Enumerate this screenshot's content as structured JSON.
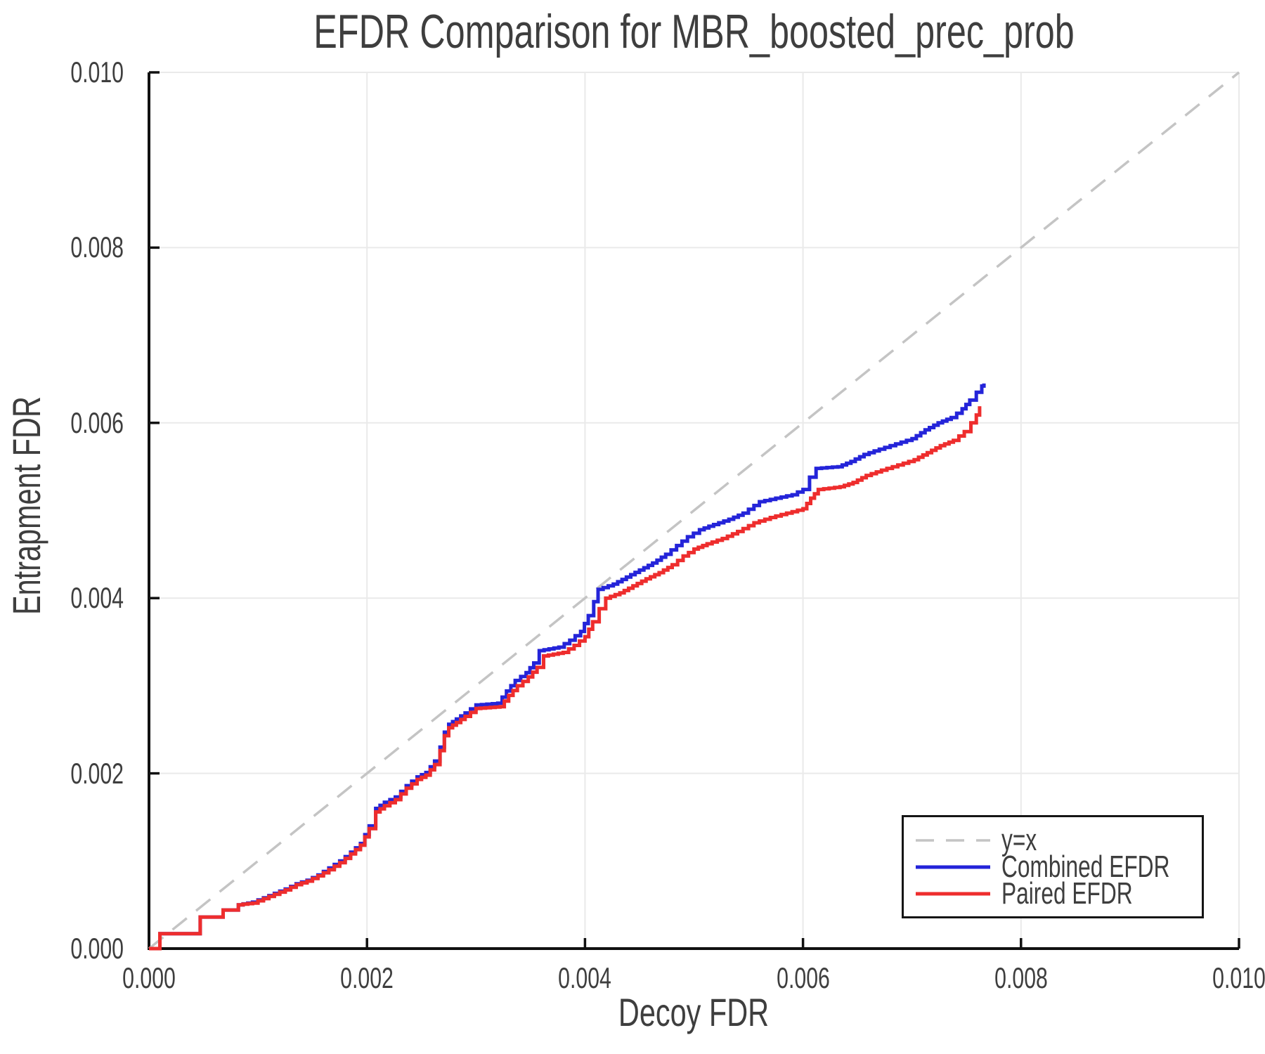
{
  "chart": {
    "title": "EFDR Comparison for MBR_boosted_prec_prob",
    "xlabel": "Decoy FDR",
    "ylabel": "Entrapment FDR"
  },
  "legend": {
    "entries": [
      {
        "label": "y=x",
        "color": "#c4c4c4",
        "dash": true
      },
      {
        "label": "Combined EFDR",
        "color": "#2424d9",
        "dash": false
      },
      {
        "label": "Paired EFDR",
        "color": "#ee2d2d",
        "dash": false
      }
    ]
  },
  "colors": {
    "grid": "#eaeaea",
    "axis": "#111111",
    "identity_line": "#c4c4c4",
    "combined": "#2424d9",
    "paired": "#ee2d2d",
    "text": "#3e3e3e"
  },
  "chart_data": {
    "type": "line",
    "title": "EFDR Comparison for MBR_boosted_prec_prob",
    "xlabel": "Decoy FDR",
    "ylabel": "Entrapment FDR",
    "xlim": [
      0.0,
      0.01
    ],
    "ylim": [
      0.0,
      0.01
    ],
    "grid": true,
    "legend_position": "lower right",
    "x_ticks": {
      "values": [
        0,
        0.002,
        0.004,
        0.006,
        0.008,
        0.01
      ],
      "labels": [
        "0.000",
        "0.002",
        "0.004",
        "0.006",
        "0.008",
        "0.010"
      ]
    },
    "y_ticks": {
      "values": [
        0,
        0.002,
        0.004,
        0.006,
        0.008,
        0.01
      ],
      "labels": [
        "0.000",
        "0.002",
        "0.004",
        "0.006",
        "0.008",
        "0.010"
      ]
    },
    "series": [
      {
        "name": "y=x",
        "style": "dashed",
        "color": "#c4c4c4",
        "points": [
          [
            0.0,
            0.0
          ],
          [
            0.01,
            0.01
          ]
        ]
      },
      {
        "name": "Combined EFDR",
        "style": "step",
        "color": "#2424d9",
        "points": [
          [
            0.0,
            0.0
          ],
          [
            0.0001,
            0.0
          ],
          [
            0.0001,
            0.00017
          ],
          [
            0.00047,
            0.00017
          ],
          [
            0.00047,
            0.00036
          ],
          [
            0.00068,
            0.00036
          ],
          [
            0.00068,
            0.00044
          ],
          [
            0.00082,
            0.00044
          ],
          [
            0.00082,
            0.0005
          ],
          [
            0.00095,
            0.00053
          ],
          [
            0.00105,
            0.00058
          ],
          [
            0.00115,
            0.00063
          ],
          [
            0.00125,
            0.00068
          ],
          [
            0.00135,
            0.00074
          ],
          [
            0.00145,
            0.00078
          ],
          [
            0.00155,
            0.00084
          ],
          [
            0.00165,
            0.00092
          ],
          [
            0.00175,
            0.001
          ],
          [
            0.00185,
            0.0011
          ],
          [
            0.00194,
            0.0012
          ],
          [
            0.00202,
            0.0014
          ],
          [
            0.00208,
            0.0016
          ],
          [
            0.00216,
            0.00167
          ],
          [
            0.00226,
            0.00173
          ],
          [
            0.00236,
            0.00186
          ],
          [
            0.00246,
            0.00196
          ],
          [
            0.00254,
            0.00201
          ],
          [
            0.00262,
            0.00214
          ],
          [
            0.00267,
            0.0023
          ],
          [
            0.00271,
            0.00247
          ],
          [
            0.00275,
            0.00256
          ],
          [
            0.00282,
            0.00262
          ],
          [
            0.0029,
            0.00269
          ],
          [
            0.003,
            0.00278
          ],
          [
            0.0032,
            0.0028
          ],
          [
            0.00328,
            0.00294
          ],
          [
            0.00336,
            0.00306
          ],
          [
            0.00346,
            0.00315
          ],
          [
            0.00353,
            0.00326
          ],
          [
            0.00358,
            0.0034
          ],
          [
            0.00376,
            0.00344
          ],
          [
            0.00386,
            0.00352
          ],
          [
            0.00396,
            0.00362
          ],
          [
            0.00403,
            0.0038
          ],
          [
            0.00408,
            0.00396
          ],
          [
            0.00412,
            0.0041
          ],
          [
            0.00426,
            0.00416
          ],
          [
            0.00438,
            0.00424
          ],
          [
            0.0045,
            0.00432
          ],
          [
            0.00462,
            0.0044
          ],
          [
            0.00474,
            0.0045
          ],
          [
            0.00484,
            0.0046
          ],
          [
            0.00494,
            0.0047
          ],
          [
            0.00505,
            0.00478
          ],
          [
            0.00518,
            0.00484
          ],
          [
            0.00532,
            0.0049
          ],
          [
            0.00545,
            0.00497
          ],
          [
            0.0056,
            0.0051
          ],
          [
            0.00575,
            0.00514
          ],
          [
            0.0059,
            0.00518
          ],
          [
            0.006,
            0.00524
          ],
          [
            0.00606,
            0.00538
          ],
          [
            0.00612,
            0.00548
          ],
          [
            0.00632,
            0.0055
          ],
          [
            0.00644,
            0.00556
          ],
          [
            0.00656,
            0.00564
          ],
          [
            0.0067,
            0.0057
          ],
          [
            0.00685,
            0.00576
          ],
          [
            0.007,
            0.00582
          ],
          [
            0.00712,
            0.00592
          ],
          [
            0.00724,
            0.006
          ],
          [
            0.00736,
            0.00606
          ],
          [
            0.00746,
            0.00616
          ],
          [
            0.00753,
            0.00626
          ],
          [
            0.00759,
            0.00635
          ],
          [
            0.00764,
            0.00642
          ],
          [
            0.00766,
            0.00645
          ]
        ]
      },
      {
        "name": "Paired EFDR",
        "style": "step",
        "color": "#ee2d2d",
        "points": [
          [
            0.0,
            0.0
          ],
          [
            0.0001,
            0.0
          ],
          [
            0.0001,
            0.00017
          ],
          [
            0.00047,
            0.00017
          ],
          [
            0.00047,
            0.00036
          ],
          [
            0.00068,
            0.00036
          ],
          [
            0.00068,
            0.00044
          ],
          [
            0.00082,
            0.00044
          ],
          [
            0.00082,
            0.0005
          ],
          [
            0.00095,
            0.00052
          ],
          [
            0.00105,
            0.00057
          ],
          [
            0.00115,
            0.00062
          ],
          [
            0.00125,
            0.00067
          ],
          [
            0.00135,
            0.00073
          ],
          [
            0.00145,
            0.00077
          ],
          [
            0.00155,
            0.00083
          ],
          [
            0.00165,
            0.0009
          ],
          [
            0.00175,
            0.00098
          ],
          [
            0.00185,
            0.00108
          ],
          [
            0.00194,
            0.00118
          ],
          [
            0.00202,
            0.00137
          ],
          [
            0.00208,
            0.00156
          ],
          [
            0.00216,
            0.00163
          ],
          [
            0.00226,
            0.0017
          ],
          [
            0.00236,
            0.00183
          ],
          [
            0.00246,
            0.00193
          ],
          [
            0.00254,
            0.00198
          ],
          [
            0.00262,
            0.0021
          ],
          [
            0.00267,
            0.00226
          ],
          [
            0.00271,
            0.00243
          ],
          [
            0.00275,
            0.00252
          ],
          [
            0.00282,
            0.00258
          ],
          [
            0.0029,
            0.00265
          ],
          [
            0.003,
            0.00274
          ],
          [
            0.00322,
            0.00276
          ],
          [
            0.0033,
            0.00289
          ],
          [
            0.00338,
            0.003
          ],
          [
            0.00348,
            0.0031
          ],
          [
            0.00356,
            0.00321
          ],
          [
            0.00362,
            0.00334
          ],
          [
            0.0038,
            0.00338
          ],
          [
            0.0039,
            0.00346
          ],
          [
            0.004,
            0.00356
          ],
          [
            0.00407,
            0.00373
          ],
          [
            0.00413,
            0.00388
          ],
          [
            0.00419,
            0.004
          ],
          [
            0.00432,
            0.00406
          ],
          [
            0.00444,
            0.00414
          ],
          [
            0.00456,
            0.00422
          ],
          [
            0.00468,
            0.00429
          ],
          [
            0.0048,
            0.00438
          ],
          [
            0.0049,
            0.00448
          ],
          [
            0.005,
            0.00456
          ],
          [
            0.00512,
            0.00462
          ],
          [
            0.00526,
            0.00468
          ],
          [
            0.0054,
            0.00476
          ],
          [
            0.00555,
            0.00486
          ],
          [
            0.0057,
            0.00492
          ],
          [
            0.00585,
            0.00497
          ],
          [
            0.006,
            0.00502
          ],
          [
            0.00607,
            0.00514
          ],
          [
            0.00614,
            0.00524
          ],
          [
            0.00634,
            0.00527
          ],
          [
            0.00646,
            0.00532
          ],
          [
            0.00658,
            0.0054
          ],
          [
            0.00672,
            0.00546
          ],
          [
            0.00687,
            0.00552
          ],
          [
            0.00702,
            0.00558
          ],
          [
            0.00714,
            0.00566
          ],
          [
            0.00726,
            0.00574
          ],
          [
            0.00738,
            0.0058
          ],
          [
            0.00748,
            0.0059
          ],
          [
            0.00754,
            0.006
          ],
          [
            0.00759,
            0.00609
          ],
          [
            0.00762,
            0.00619
          ]
        ]
      }
    ]
  }
}
